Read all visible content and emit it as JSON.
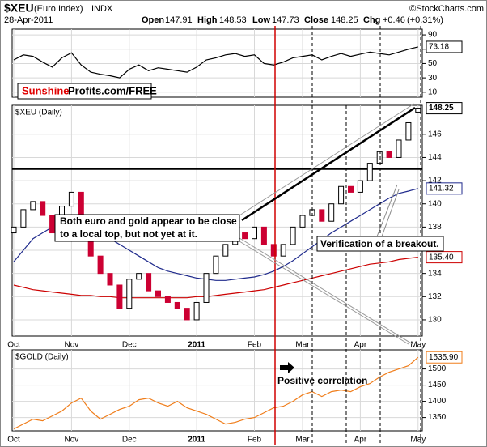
{
  "header": {
    "symbol": "$XEU",
    "name": "(Euro Index)",
    "exchange": "INDX",
    "date": "28-Apr-2011",
    "open_label": "Open",
    "open": 147.91,
    "high_label": "High",
    "high": 148.53,
    "low_label": "Low",
    "low": 147.73,
    "close_label": "Close",
    "close": 148.25,
    "chg_label": "Chg",
    "chg": "+0.46",
    "chg_pct": "(+0.31%)",
    "source": "©StockCharts.com"
  },
  "annotations": {
    "brand_red": "Sunshine",
    "brand_rest": "Profits.com/FREE",
    "note_lines": [
      "Both euro and gold appear to be close",
      "to a local top, but not yet at it."
    ],
    "verification": "Verification of a breakout.",
    "correlation": "Positive correlation"
  },
  "chart_data": [
    {
      "type": "line",
      "color": "#000000",
      "ylim": [
        3,
        98
      ],
      "yticks": [
        90,
        70,
        50,
        30,
        10
      ],
      "values": [
        55,
        62,
        60,
        52,
        45,
        58,
        65,
        48,
        38,
        35,
        33,
        30,
        42,
        48,
        40,
        44,
        42,
        40,
        38,
        45,
        55,
        58,
        62,
        64,
        60,
        62,
        50,
        48,
        52,
        58,
        60,
        62,
        55,
        60,
        64,
        60,
        63,
        66,
        64,
        62,
        66,
        70,
        73.18
      ]
    },
    {
      "type": "candlestick",
      "title": "$XEU (Daily)",
      "color_up": "#000000",
      "color_down": "#cc0033",
      "ylim": [
        128.6,
        148.5
      ],
      "yticks": [
        130,
        132,
        134,
        136,
        138,
        140,
        142,
        144,
        146
      ],
      "hline": 143,
      "grid": true,
      "categories": [
        "Oct",
        null,
        null,
        null,
        null,
        null,
        "Nov",
        null,
        null,
        null,
        null,
        null,
        "Dec",
        null,
        null,
        null,
        null,
        null,
        null,
        "2011",
        null,
        null,
        null,
        null,
        null,
        "Feb",
        null,
        null,
        null,
        null,
        "Mar",
        null,
        null,
        null,
        null,
        null,
        "Apr",
        null,
        null,
        null,
        null,
        null,
        "May"
      ],
      "open": [
        137.5,
        138.0,
        139.5,
        140.2,
        139.0,
        137.5,
        139.8,
        141.0,
        138.0,
        135.5,
        134.0,
        133.0,
        131.0,
        133.5,
        134.0,
        132.5,
        132.0,
        131.5,
        131.0,
        130.0,
        131.5,
        134.0,
        135.5,
        136.5,
        137.5,
        137.0,
        138.0,
        136.5,
        135.5,
        136.5,
        138.0,
        139.0,
        139.5,
        138.5,
        140.0,
        141.5,
        141.0,
        142.0,
        143.5,
        144.5,
        144.0,
        145.5,
        147.91
      ],
      "close": [
        138.0,
        139.5,
        140.2,
        139.0,
        137.5,
        139.8,
        141.0,
        138.0,
        135.5,
        134.0,
        133.0,
        131.0,
        133.5,
        134.0,
        132.5,
        132.0,
        131.5,
        131.0,
        130.0,
        131.5,
        134.0,
        135.5,
        136.5,
        137.5,
        137.0,
        138.0,
        136.5,
        135.5,
        136.5,
        138.0,
        139.0,
        139.5,
        138.5,
        140.0,
        141.5,
        141.0,
        142.0,
        143.5,
        144.5,
        144.0,
        145.5,
        147.0,
        148.25
      ],
      "overlays": [
        {
          "color": "#1f2a8c",
          "values": [
            135.0,
            136,
            137,
            137.5,
            138,
            138.3,
            138.3,
            138.2,
            138,
            137.5,
            137,
            136.5,
            136,
            135.5,
            135,
            134.5,
            134.2,
            134,
            133.8,
            133.6,
            133.5,
            133.4,
            133.4,
            133.5,
            133.6,
            133.7,
            133.9,
            134.2,
            134.6,
            135.1,
            135.7,
            136.3,
            136.9,
            137.5,
            138.0,
            138.5,
            139.0,
            139.5,
            140.0,
            140.5,
            140.9,
            141.1,
            141.32
          ]
        },
        {
          "color": "#cc0000",
          "values": [
            133.0,
            132.8,
            132.6,
            132.5,
            132.4,
            132.3,
            132.2,
            132.1,
            132.1,
            132.0,
            132.0,
            131.9,
            131.9,
            131.9,
            131.9,
            131.9,
            131.9,
            131.9,
            131.9,
            132.0,
            132.0,
            132.1,
            132.2,
            132.3,
            132.4,
            132.5,
            132.6,
            132.8,
            133.0,
            133.2,
            133.4,
            133.6,
            133.8,
            134.0,
            134.2,
            134.4,
            134.6,
            134.8,
            134.9,
            135.0,
            135.2,
            135.3,
            135.4
          ],
          "value_labels": [
            null,
            null,
            null,
            null,
            null,
            null,
            null,
            null,
            null,
            null,
            null,
            null,
            null,
            null,
            null,
            null,
            null,
            null,
            null,
            null,
            null,
            null,
            null,
            null,
            null,
            null,
            null,
            null,
            null,
            null,
            null,
            null,
            null,
            null,
            null,
            null,
            null,
            null,
            null,
            null,
            null,
            null,
            "135.40"
          ]
        }
      ]
    },
    {
      "type": "line",
      "title": "$GOLD (Daily)",
      "color": "#f07d1a",
      "ylim": [
        1309,
        1559
      ],
      "yticks": [
        1350,
        1400,
        1450,
        1500
      ],
      "grid": true,
      "categories": [
        "Oct",
        null,
        null,
        null,
        null,
        null,
        "Nov",
        null,
        null,
        null,
        null,
        null,
        "Dec",
        null,
        null,
        null,
        null,
        null,
        null,
        "2011",
        null,
        null,
        null,
        null,
        null,
        "Feb",
        null,
        null,
        null,
        null,
        "Mar",
        null,
        null,
        null,
        null,
        null,
        "Apr",
        null,
        null,
        null,
        null,
        null,
        "May"
      ],
      "values": [
        1315,
        1330,
        1345,
        1340,
        1355,
        1370,
        1395,
        1410,
        1370,
        1345,
        1360,
        1375,
        1385,
        1405,
        1410,
        1395,
        1385,
        1400,
        1380,
        1370,
        1360,
        1345,
        1330,
        1335,
        1345,
        1350,
        1365,
        1380,
        1385,
        1400,
        1420,
        1430,
        1415,
        1430,
        1435,
        1430,
        1445,
        1455,
        1475,
        1490,
        1500,
        1510,
        1535.9
      ],
      "value_labels": [
        null,
        null,
        null,
        null,
        null,
        null,
        null,
        null,
        null,
        null,
        null,
        null,
        null,
        null,
        null,
        null,
        null,
        null,
        null,
        null,
        null,
        null,
        null,
        null,
        null,
        null,
        null,
        null,
        null,
        null,
        null,
        null,
        null,
        null,
        null,
        null,
        null,
        null,
        null,
        null,
        null,
        null,
        "1535.90"
      ]
    }
  ]
}
